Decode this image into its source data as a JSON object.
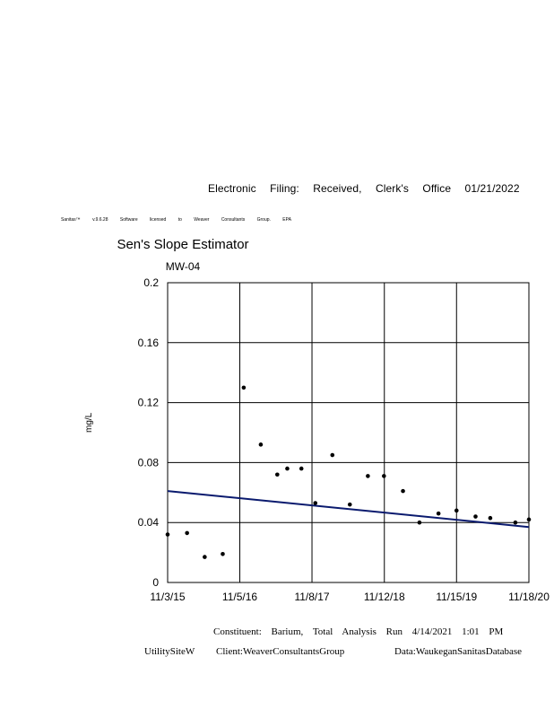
{
  "header": {
    "filing_text": "Electronic Filing: Received, Clerk's Office 01/21/2022",
    "license_text": "Sanitas™ v.9.6.28 Software licensed to Weaver Consultants Group. EPA"
  },
  "chart_data": {
    "type": "scatter",
    "title": "Sen's Slope Estimator",
    "subtitle": "MW-04",
    "xlabel": "",
    "ylabel": "mg/L",
    "x_ticks": [
      "11/3/15",
      "11/5/16",
      "11/8/17",
      "11/12/18",
      "11/15/19",
      "11/18/20"
    ],
    "ylim": [
      0,
      0.2
    ],
    "y_ticks": [
      "0",
      "0.04",
      "0.08",
      "0.12",
      "0.16",
      "0.2"
    ],
    "grid": true,
    "point_color": "#000000",
    "trend_color": "#0a1a6e",
    "points": [
      {
        "x": "2015-11-03",
        "y": 0.032
      },
      {
        "x": "2016-02-10",
        "y": 0.033
      },
      {
        "x": "2016-05-10",
        "y": 0.017
      },
      {
        "x": "2016-08-10",
        "y": 0.019
      },
      {
        "x": "2016-11-25",
        "y": 0.13
      },
      {
        "x": "2017-02-20",
        "y": 0.092
      },
      {
        "x": "2017-05-15",
        "y": 0.072
      },
      {
        "x": "2017-07-05",
        "y": 0.076
      },
      {
        "x": "2017-09-15",
        "y": 0.076
      },
      {
        "x": "2017-11-25",
        "y": 0.053
      },
      {
        "x": "2018-02-20",
        "y": 0.085
      },
      {
        "x": "2018-05-20",
        "y": 0.052
      },
      {
        "x": "2018-08-20",
        "y": 0.071
      },
      {
        "x": "2018-11-10",
        "y": 0.071
      },
      {
        "x": "2019-02-15",
        "y": 0.061
      },
      {
        "x": "2019-05-10",
        "y": 0.04
      },
      {
        "x": "2019-08-15",
        "y": 0.046
      },
      {
        "x": "2019-11-15",
        "y": 0.048
      },
      {
        "x": "2020-02-20",
        "y": 0.044
      },
      {
        "x": "2020-05-05",
        "y": 0.043
      },
      {
        "x": "2020-09-10",
        "y": 0.04
      },
      {
        "x": "2020-11-18",
        "y": 0.042
      }
    ],
    "trend_line": [
      {
        "x": "2015-11-03",
        "y": 0.061
      },
      {
        "x": "2020-11-18",
        "y": 0.037
      }
    ]
  },
  "footer": {
    "run_text": "Constituent: Barium, Total Analysis Run 4/14/2021 1:01 PM",
    "site_text": "UtilitySiteW",
    "client_text": "Client:WeaverConsultantsGroup",
    "data_text": "Data:WaukeganSanitasDatabase"
  }
}
